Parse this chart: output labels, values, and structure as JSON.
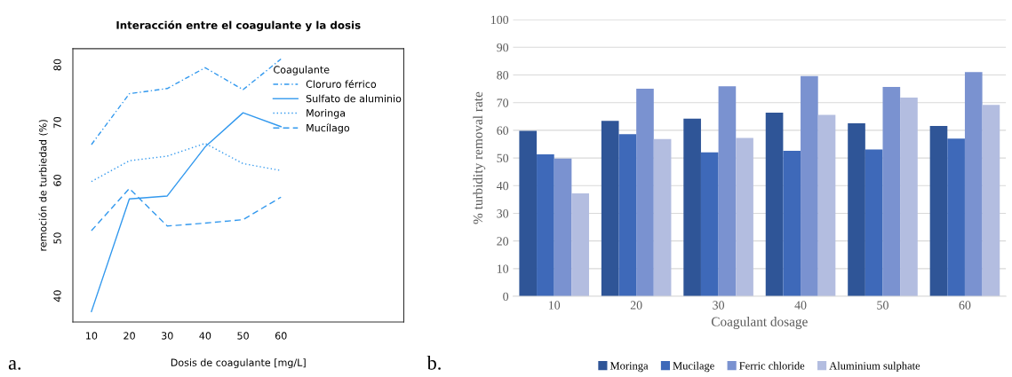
{
  "chart_data": [
    {
      "type": "line",
      "title": "Interacción entre el coagulante y la dosis",
      "xlabel": "Dosis de coagulante [mg/L]",
      "ylabel": "remoción de turbiedad (%)",
      "legend_title": "Coagulante",
      "legend": "top right",
      "annotations": [
        "a."
      ],
      "x": [
        10,
        20,
        30,
        40,
        50,
        60
      ],
      "xlim": [
        5.1,
        92.4
      ],
      "xticks": [
        10,
        20,
        30,
        40,
        50,
        60
      ],
      "ylim": [
        35.5,
        82.8
      ],
      "yticks": [
        40,
        50,
        60,
        70,
        80
      ],
      "grid": false,
      "series": [
        {
          "name": "Cloruro férrico",
          "color": "#3399ee",
          "line_style": "dashdot",
          "values": [
            66.2,
            75.0,
            75.9,
            79.5,
            75.7,
            81.0
          ]
        },
        {
          "name": "Sulfato de aluminio",
          "color": "#3399ee",
          "line_style": "solid",
          "values": [
            37.3,
            56.8,
            57.3,
            65.8,
            71.7,
            69.3
          ]
        },
        {
          "name": "Moringa",
          "color": "#3399ee",
          "line_style": "dotted",
          "values": [
            59.8,
            63.4,
            64.2,
            66.4,
            62.9,
            61.7
          ]
        },
        {
          "name": "Mucílago",
          "color": "#3399ee",
          "line_style": "dashed",
          "values": [
            51.3,
            58.6,
            52.1,
            52.6,
            53.2,
            57.1
          ]
        }
      ]
    },
    {
      "type": "bar",
      "xlabel": "Coagulant dosage",
      "ylabel": "% turbidity removal rate",
      "legend": "bottom",
      "annotations": [
        "b."
      ],
      "categories": [
        "10",
        "20",
        "30",
        "40",
        "50",
        "60"
      ],
      "ylim": [
        0,
        100
      ],
      "yticks": [
        0,
        10,
        20,
        30,
        40,
        50,
        60,
        70,
        80,
        90,
        100
      ],
      "grid": "y",
      "series": [
        {
          "name": "Moringa",
          "color": "#2f5597",
          "values": [
            59.8,
            63.4,
            64.2,
            66.4,
            62.5,
            61.6
          ]
        },
        {
          "name": "Mucilage",
          "color": "#3e69b9",
          "values": [
            51.3,
            58.6,
            52.0,
            52.6,
            53.1,
            57.0
          ]
        },
        {
          "name": "Ferric chloride",
          "color": "#7a92d0",
          "values": [
            49.8,
            75.0,
            75.9,
            79.6,
            75.7,
            81.0
          ]
        },
        {
          "name": "Aluminium sulphate",
          "color": "#b3bde0",
          "values": [
            37.2,
            56.8,
            57.2,
            65.6,
            71.8,
            69.2
          ]
        }
      ]
    }
  ]
}
